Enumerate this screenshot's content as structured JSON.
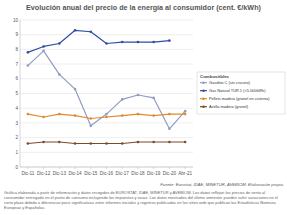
{
  "chart_data": {
    "type": "line",
    "title": "Evolución anual del precio de la energía al consumidor (cent. €/kWh)",
    "categories": [
      "Dic-11",
      "Dic-12",
      "Dic-13",
      "Dic-14",
      "Dic-15",
      "Dic-16",
      "Dic-17",
      "Dic-18",
      "Dic-19",
      "Dic-20",
      "Abr-21"
    ],
    "series": [
      {
        "name": "Gasóleo C (sin crucero)",
        "color": "#8f9dc2",
        "values": [
          6.9,
          7.9,
          6.3,
          5.3,
          2.8,
          3.6,
          4.6,
          4.9,
          4.7,
          2.6,
          3.8
        ]
      },
      {
        "name": "Gas Natural TUR 1 (<5.000kWh)",
        "color": "#2f4fa2",
        "values": [
          7.8,
          8.2,
          8.4,
          9.3,
          9.2,
          8.4,
          8.5,
          8.5,
          8.5,
          8.6,
          null
        ]
      },
      {
        "name": "Pellets madera (granel en cisterna)",
        "color": "#e08a2c",
        "values": [
          3.6,
          3.4,
          3.6,
          3.5,
          3.3,
          3.4,
          3.5,
          3.6,
          3.5,
          3.6,
          3.6
        ]
      },
      {
        "name": "Astilla madera (granel)",
        "color": "#7a4b2a",
        "values": [
          1.6,
          1.7,
          1.7,
          1.6,
          1.6,
          1.6,
          1.6,
          1.7,
          1.7,
          1.7,
          1.7
        ]
      }
    ],
    "ylim": [
      0,
      10
    ],
    "yticks": [
      0,
      1,
      2,
      3,
      4,
      5,
      6,
      7,
      8,
      9,
      10
    ],
    "grid": true,
    "legend": "right",
    "marker": "circle",
    "legend_title": "Combustibles",
    "annotations": [
      "Fuente: Eurostat, IDAE, MINETUR, AVEBIOM. Elaboración propia",
      "Gráfica elaborada a partir de información y datos recogidos de EUROSTAT, IDAE, MINETUR y AVEBIOM. Los datos reflejan los precios de venta al consumidor entregado en el punto de consumo incluyendo los impuestos y tasas. Los datos mostrados del último semestre pueden sufrir variaciones en el corto plazo debido a diferencias poco significativas entre informes iniciales y registros publicados en los sitios web que publican las Estadísticas Biomasa Europeas y Españolas."
    ]
  }
}
